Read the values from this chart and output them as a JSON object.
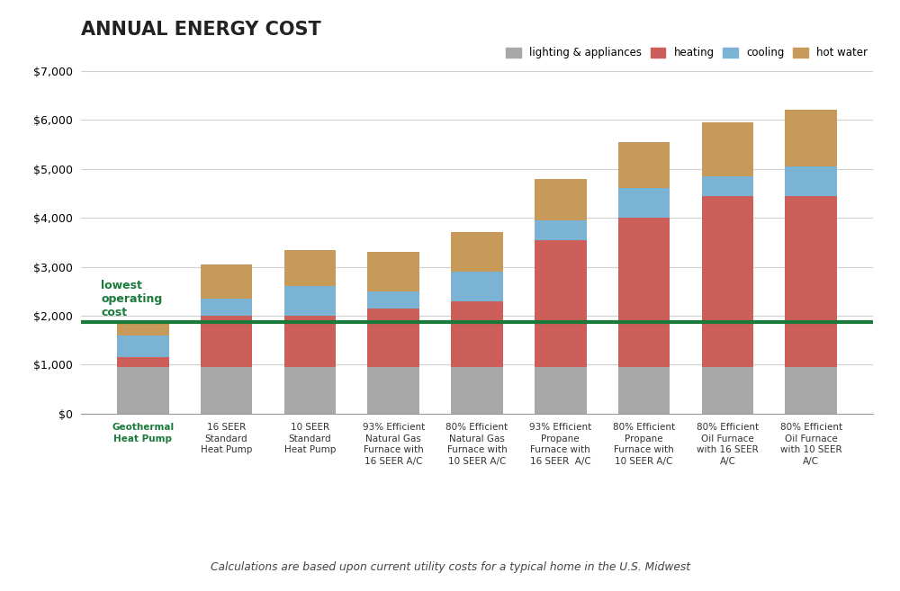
{
  "title": "ANNUAL ENERGY COST",
  "subtitle": "Calculations are based upon current utility costs for a typical home in the U.S. Midwest",
  "categories": [
    "Geothermal\nHeat Pump",
    "16 SEER\nStandard\nHeat Pump",
    "10 SEER\nStandard\nHeat Pump",
    "93% Efficient\nNatural Gas\nFurnace with\n16 SEER A/C",
    "80% Efficient\nNatural Gas\nFurnace with\n10 SEER A/C",
    "93% Efficient\nPropane\nFurnace with\n16 SEER  A/C",
    "80% Efficient\nPropane\nFurnace with\n10 SEER A/C",
    "80% Efficient\nOil Furnace\nwith 16 SEER\nA/C",
    "80% Efficient\nOil Furnace\nwith 10 SEER\nA/C"
  ],
  "lighting_appliances": [
    950,
    950,
    950,
    950,
    950,
    950,
    950,
    950,
    950
  ],
  "heating": [
    200,
    1050,
    1050,
    1200,
    1350,
    2600,
    3050,
    3500,
    3500
  ],
  "cooling": [
    450,
    350,
    600,
    350,
    600,
    400,
    600,
    400,
    600
  ],
  "hot_water": [
    250,
    700,
    750,
    800,
    800,
    850,
    950,
    1100,
    1150
  ],
  "reference_line": 1880,
  "color_lighting": "#a8a8a8",
  "color_heating": "#cc5f5a",
  "color_cooling": "#7ab3d4",
  "color_hot_water": "#c89a5a",
  "color_reference_line": "#1a7a3a",
  "color_geothermal_label": "#1a7a3a",
  "ylim": [
    0,
    7000
  ],
  "yticks": [
    0,
    1000,
    2000,
    3000,
    4000,
    5000,
    6000,
    7000
  ],
  "reference_label": "lowest\noperating\ncost",
  "background_color": "#ffffff",
  "grid_color": "#d0d0d0"
}
